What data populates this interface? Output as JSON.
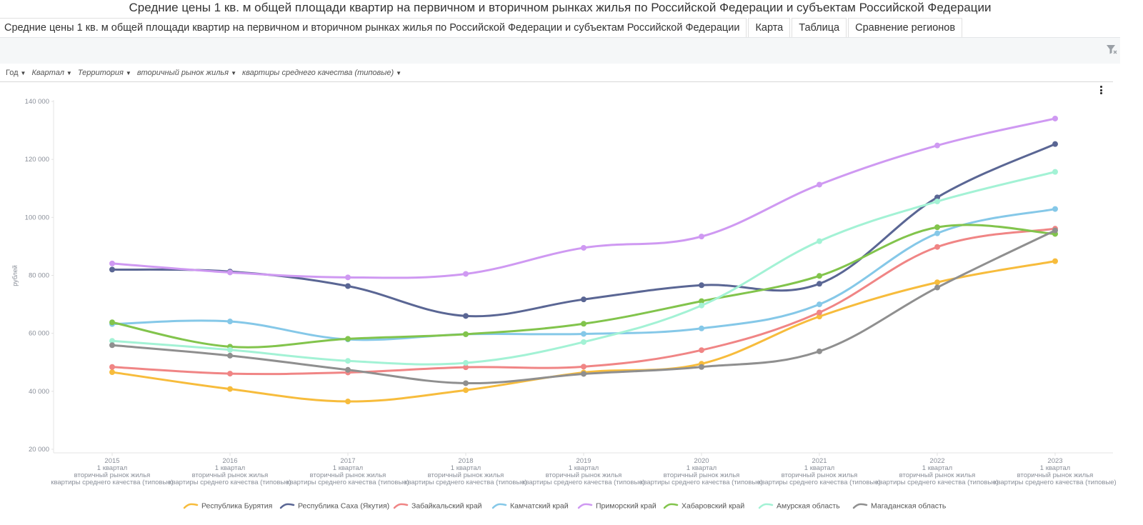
{
  "page": {
    "title": "Средние цены 1 кв. м общей площади квартир на первичном и вторичном рынках жилья по Российской Федерации и субъектам Российской Федерации"
  },
  "tabs": [
    {
      "label": "Средние цены 1 кв. м общей площади квартир на первичном и вторичном рынках жилья по Российской Федерации и субъектам Российской Федерации",
      "active": true
    },
    {
      "label": "Карта",
      "active": false
    },
    {
      "label": "Таблица",
      "active": false
    },
    {
      "label": "Сравнение регионов",
      "active": false
    }
  ],
  "toolbar": {
    "filter_clear_icon": "filter-clear-icon"
  },
  "pivot": [
    {
      "label": "Год",
      "italic": false
    },
    {
      "label": "Квартал",
      "italic": true
    },
    {
      "label": "Территория",
      "italic": true
    },
    {
      "label": "вторичный рынок жилья",
      "italic": true
    },
    {
      "label": "квартиры среднего качества (типовые)",
      "italic": true
    }
  ],
  "chart_menu_icon": "more-vertical-icon",
  "chart_data": {
    "type": "line",
    "smooth": true,
    "title": "",
    "xlabel": "",
    "ylabel": "рублей",
    "ylim": [
      20000,
      140000
    ],
    "yticks": [
      20000,
      40000,
      60000,
      80000,
      100000,
      120000,
      140000
    ],
    "ytick_labels": [
      "20 000",
      "40 000",
      "60 000",
      "80 000",
      "100 000",
      "120 000",
      "140 000"
    ],
    "grid": false,
    "legend_position": "bottom",
    "categories": [
      "2015",
      "2016",
      "2017",
      "2018",
      "2019",
      "2020",
      "2021",
      "2022",
      "2023"
    ],
    "category_sublabels": [
      "1 квартал",
      "вторичный рынок жилья",
      "квартиры среднего качества (типовые)"
    ],
    "series": [
      {
        "name": "Республика Бурятия",
        "color": "#f7bc3c",
        "values": [
          46600,
          40800,
          36500,
          40400,
          46500,
          49500,
          65800,
          77600,
          84900
        ]
      },
      {
        "name": "Республика Саха (Якутия)",
        "color": "#5a6694",
        "values": [
          82000,
          81300,
          76300,
          66000,
          71700,
          76600,
          77100,
          106900,
          125300
        ]
      },
      {
        "name": "Забайкальский край",
        "color": "#f08585",
        "values": [
          48400,
          46100,
          46500,
          48300,
          48500,
          54200,
          67200,
          89800,
          96100
        ]
      },
      {
        "name": "Камчатский край",
        "color": "#85c8e8",
        "values": [
          63200,
          64100,
          57900,
          59700,
          59800,
          61700,
          70000,
          94500,
          102900
        ]
      },
      {
        "name": "Приморский край",
        "color": "#cf99f2",
        "values": [
          84100,
          81000,
          79300,
          80500,
          89500,
          93400,
          111300,
          124800,
          134100
        ]
      },
      {
        "name": "Хабаровский край",
        "color": "#82c44c",
        "values": [
          63800,
          55400,
          58100,
          59700,
          63300,
          71100,
          79800,
          96600,
          94300
        ]
      },
      {
        "name": "Амурская область",
        "color": "#a3f2d5",
        "values": [
          57400,
          54300,
          50500,
          49800,
          57000,
          69600,
          91800,
          105500,
          115700
        ]
      },
      {
        "name": "Магаданская область",
        "color": "#8f8f8f",
        "values": [
          55900,
          52300,
          47400,
          42800,
          46000,
          48400,
          53800,
          75800,
          95500
        ]
      }
    ]
  }
}
